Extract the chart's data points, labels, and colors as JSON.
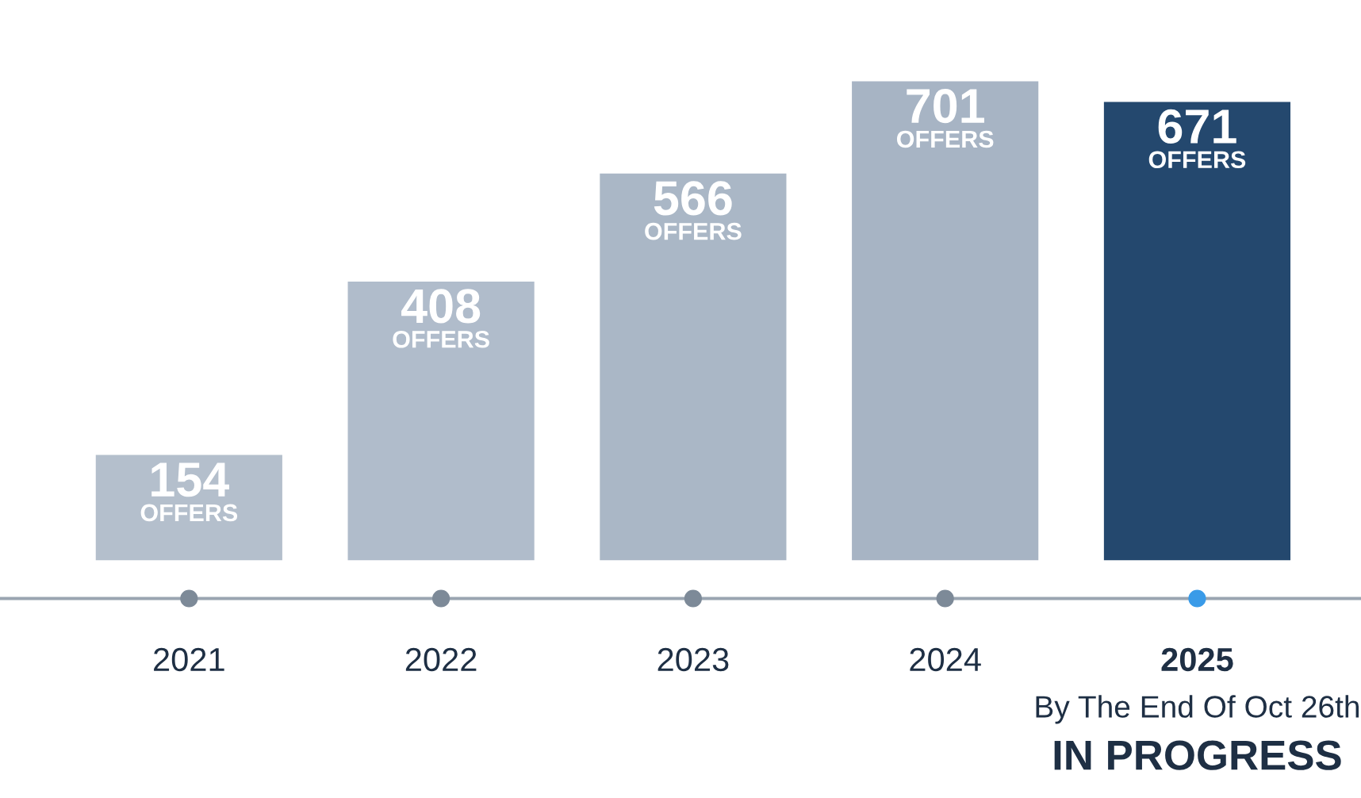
{
  "chart_data": {
    "type": "bar",
    "categories": [
      "2021",
      "2022",
      "2023",
      "2024",
      "2025"
    ],
    "values": [
      154,
      408,
      566,
      701,
      671
    ],
    "colors": [
      "#b4bfcc",
      "#b0bccb",
      "#aab7c6",
      "#a7b4c4",
      "#24486e"
    ],
    "value_labels": [
      "154\nOFFERS",
      "408\nOFFERS",
      "566\nOFFERS",
      "701\nOFFERS",
      "671\nOFFERS"
    ],
    "annotations": [
      "By The End Of Oct 26th",
      "IN PROGRESS"
    ],
    "grid": false,
    "legend": false
  }
}
